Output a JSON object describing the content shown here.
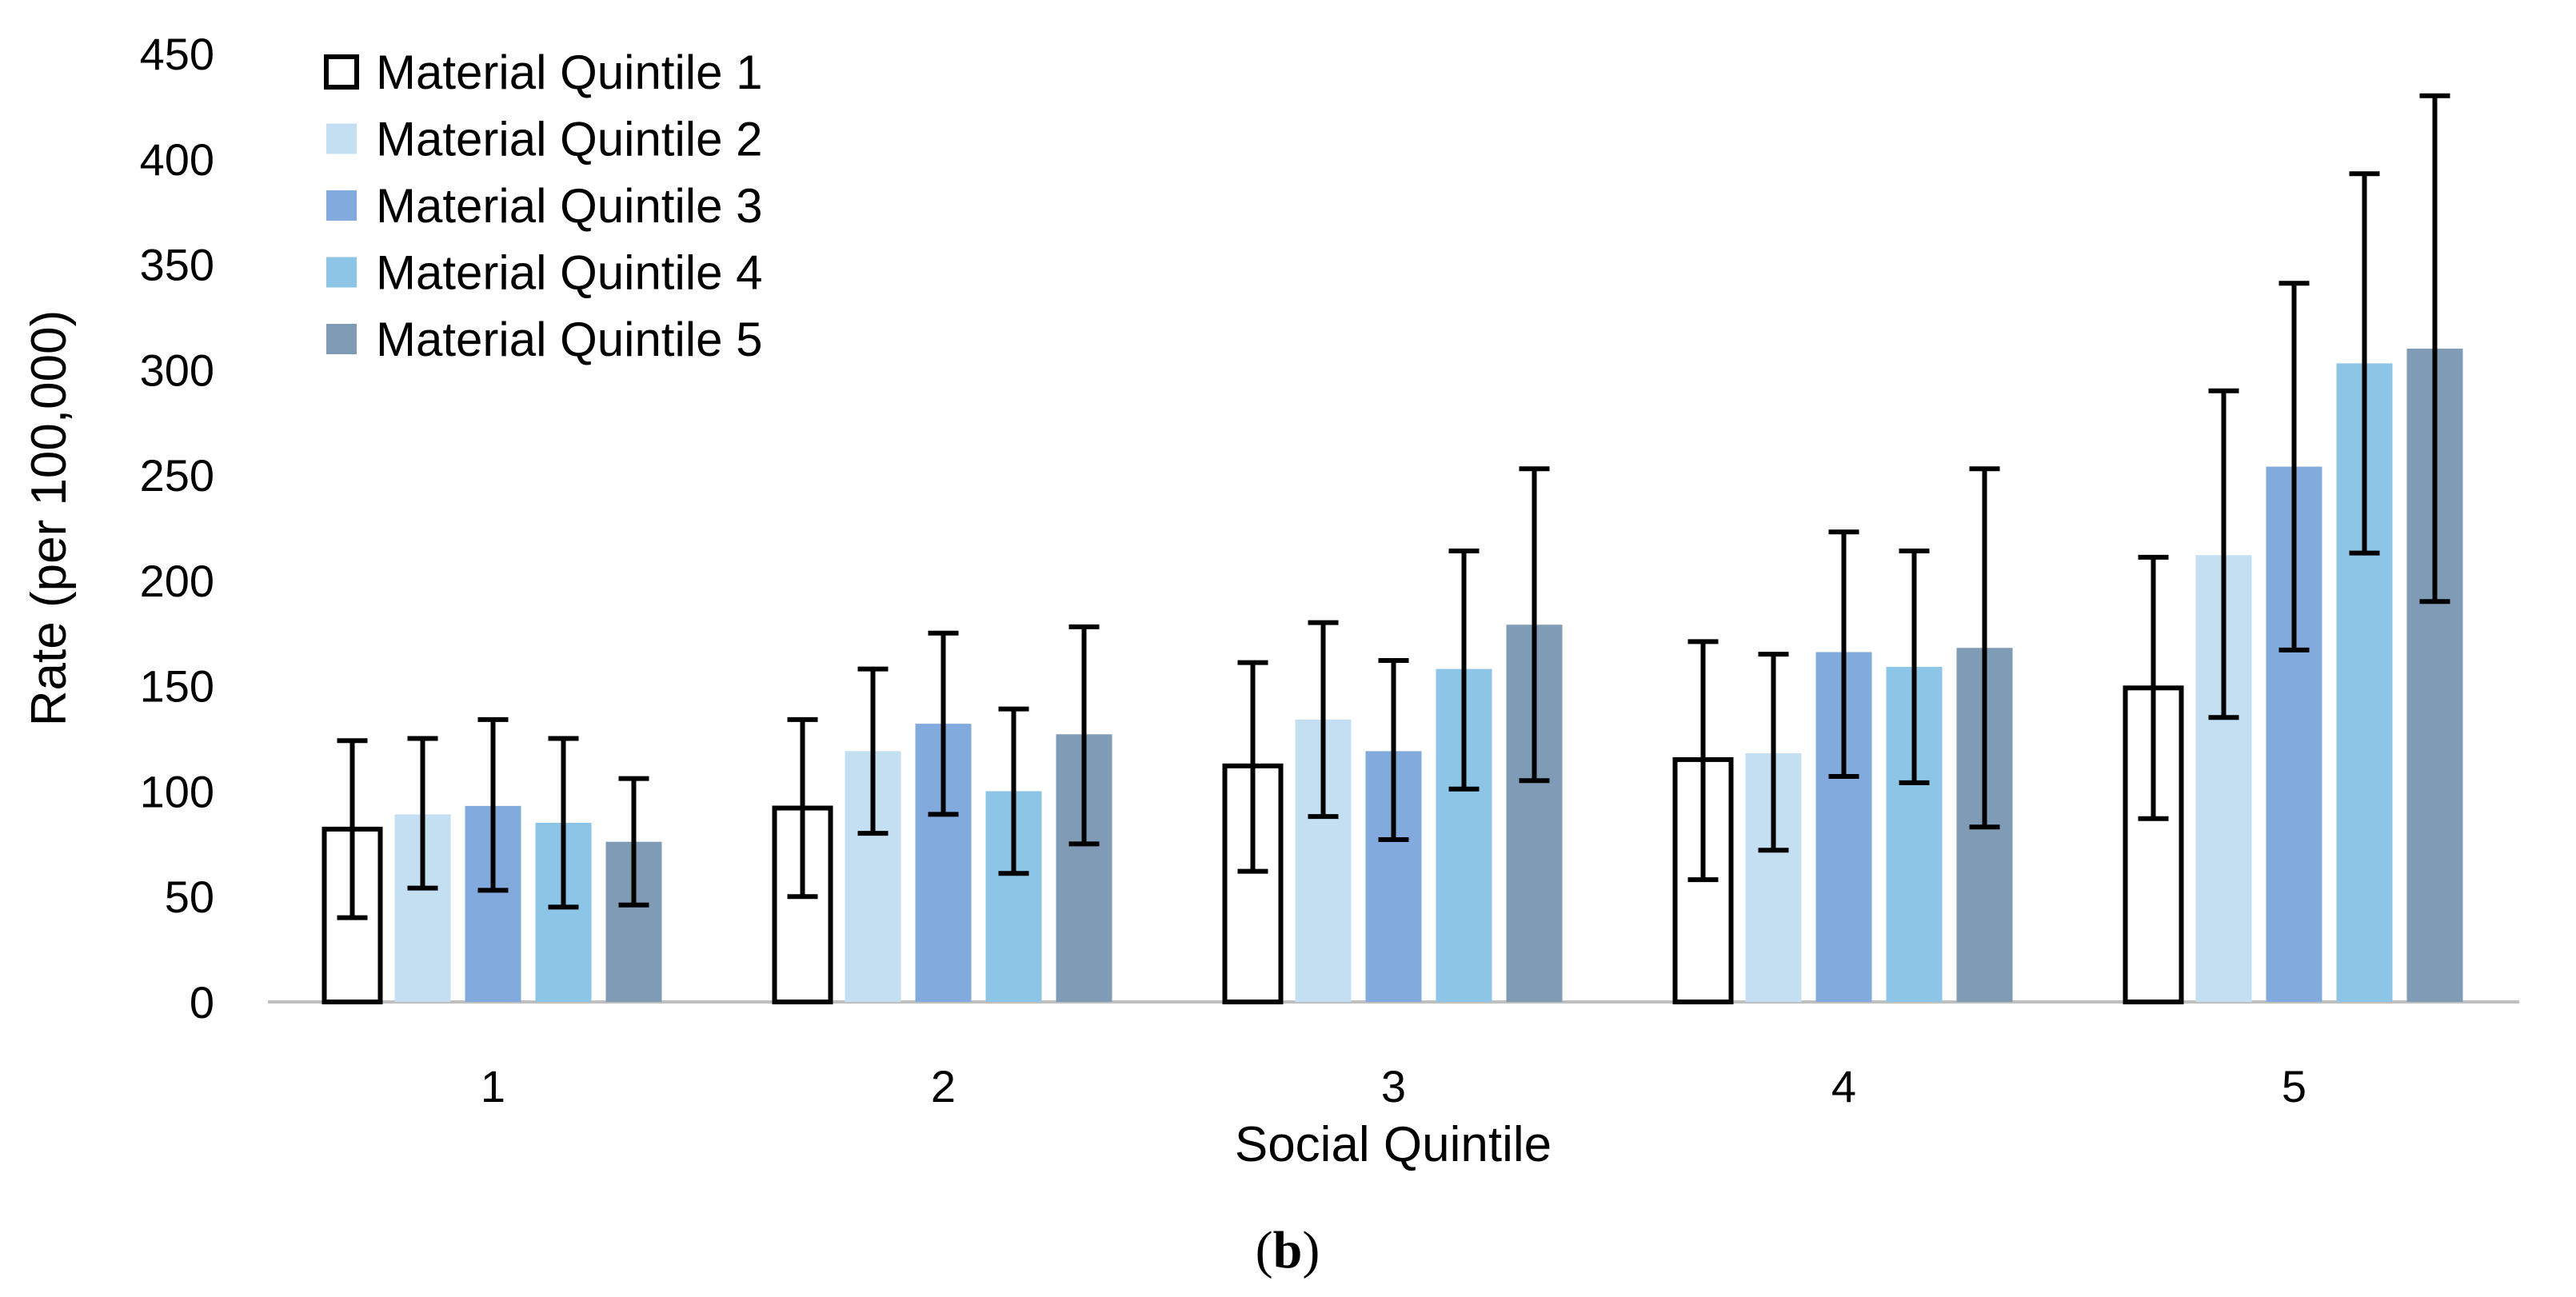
{
  "chart_data": {
    "type": "bar",
    "xlabel": "Social Quintile",
    "ylabel": "Rate (per 100,000)",
    "caption": {
      "open": "(",
      "letter": "b",
      "close": ")"
    },
    "ylim": [
      0,
      450
    ],
    "yticks": [
      0,
      50,
      100,
      150,
      200,
      250,
      300,
      350,
      400,
      450
    ],
    "categories": [
      "1",
      "2",
      "3",
      "4",
      "5"
    ],
    "legend_position": "top-left",
    "grid": false,
    "error_bars": true,
    "series": [
      {
        "name": "Material Quintile 1",
        "color": "#ffffff",
        "stroke": "#000000",
        "values": [
          82,
          92,
          112,
          115,
          149
        ],
        "err_low": [
          40,
          50,
          62,
          58,
          87
        ],
        "err_high": [
          124,
          134,
          161,
          171,
          211
        ]
      },
      {
        "name": "Material Quintile 2",
        "color": "#c5dff2",
        "stroke": "none",
        "values": [
          89,
          119,
          134,
          118,
          212
        ],
        "err_low": [
          54,
          80,
          88,
          72,
          135
        ],
        "err_high": [
          125,
          158,
          180,
          165,
          290
        ]
      },
      {
        "name": "Material Quintile 3",
        "color": "#82aadd",
        "stroke": "none",
        "values": [
          93,
          132,
          119,
          166,
          254
        ],
        "err_low": [
          53,
          89,
          77,
          107,
          167
        ],
        "err_high": [
          134,
          175,
          162,
          223,
          341
        ]
      },
      {
        "name": "Material Quintile 4",
        "color": "#8dc5e6",
        "stroke": "none",
        "values": [
          85,
          100,
          158,
          159,
          303
        ],
        "err_low": [
          45,
          61,
          101,
          104,
          213
        ],
        "err_high": [
          125,
          139,
          214,
          214,
          393
        ]
      },
      {
        "name": "Material Quintile 5",
        "color": "#7f9bb5",
        "stroke": "none",
        "values": [
          76,
          127,
          179,
          168,
          310
        ],
        "err_low": [
          46,
          75,
          105,
          83,
          190
        ],
        "err_high": [
          106,
          178,
          253,
          253,
          430
        ]
      }
    ]
  }
}
